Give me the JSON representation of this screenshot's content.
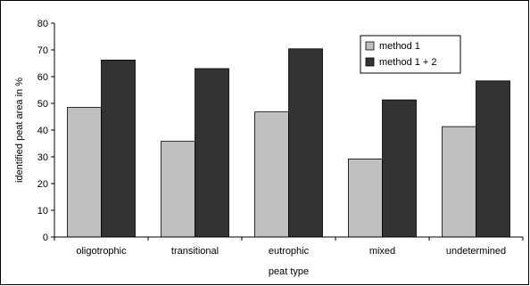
{
  "chart_data": {
    "type": "bar",
    "categories": [
      "oligotrophic",
      "transitional",
      "eutrophic",
      "mixed",
      "undetermined"
    ],
    "series": [
      {
        "name": "method 1",
        "values": [
          48.5,
          35.8,
          46.8,
          29.2,
          41.3
        ],
        "color": "#c0c0c0"
      },
      {
        "name": "method 1 + 2",
        "values": [
          66.2,
          63.0,
          70.4,
          51.3,
          58.4
        ],
        "color": "#333333"
      }
    ],
    "xlabel": "peat type",
    "ylabel": "identified peat area in %",
    "ylim": [
      0,
      80
    ],
    "yticks": [
      0,
      10,
      20,
      30,
      40,
      50,
      60,
      70,
      80
    ],
    "grid": false,
    "legend_position": "top-right"
  }
}
